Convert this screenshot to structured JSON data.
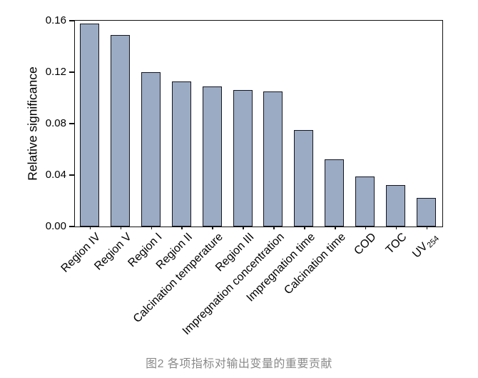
{
  "figure": {
    "caption": "图2  各项指标对输出变量的重要贡献"
  },
  "chart_data": {
    "type": "bar",
    "title": "",
    "xlabel": "",
    "ylabel": "Relative significance",
    "ylim": [
      0,
      0.16
    ],
    "grid": false,
    "legend": null,
    "bar_fill_color": "#9babc4",
    "bar_edge_color": "#16161f",
    "axis_color": "#111111",
    "caption_color": "#8a8a8a",
    "ytick_values": [
      0.0,
      0.04,
      0.08,
      0.12,
      0.16
    ],
    "ytick_labels": [
      "0.00",
      "0.04",
      "0.08",
      "0.12",
      "0.16"
    ],
    "categories": [
      {
        "label": "Region IV"
      },
      {
        "label": "Region V"
      },
      {
        "label": "Region I"
      },
      {
        "label": "Region II"
      },
      {
        "label": "Calcination temperature"
      },
      {
        "label": "Region III"
      },
      {
        "label": "Impregnation concentration"
      },
      {
        "label": "Impregnation time"
      },
      {
        "label": "Calcination time"
      },
      {
        "label": "COD"
      },
      {
        "label": "TOC"
      },
      {
        "label": "UV",
        "sub": "254"
      }
    ],
    "values": [
      0.158,
      0.149,
      0.12,
      0.113,
      0.109,
      0.106,
      0.105,
      0.075,
      0.052,
      0.039,
      0.032,
      0.022
    ]
  }
}
